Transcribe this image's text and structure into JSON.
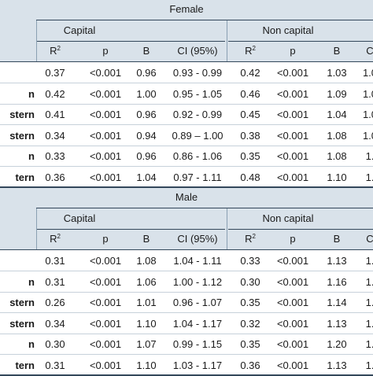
{
  "sections": [
    {
      "title": "Female",
      "group1": "Capital",
      "group2": "Non capital",
      "columns": [
        "R2",
        "p",
        "B",
        "CI (95%)",
        "R2",
        "p",
        "B",
        "C"
      ],
      "rows": [
        {
          "label": "",
          "cells": [
            "0.37",
            "<0.001",
            "0.96",
            "0.93 - 0.99",
            "0.42",
            "<0.001",
            "1.03",
            "1.0"
          ]
        },
        {
          "label": "n",
          "cells": [
            "0.42",
            "<0.001",
            "1.00",
            "0.95 - 1.05",
            "0.46",
            "<0.001",
            "1.09",
            "1.0"
          ]
        },
        {
          "label": "stern",
          "cells": [
            "0.41",
            "<0.001",
            "0.96",
            "0.92 - 0.99",
            "0.45",
            "<0.001",
            "1.04",
            "1.0"
          ]
        },
        {
          "label": "stern",
          "cells": [
            "0.34",
            "<0.001",
            "0.94",
            "0.89 – 1.00",
            "0.38",
            "<0.001",
            "1.08",
            "1.0"
          ]
        },
        {
          "label": "n",
          "cells": [
            "0.33",
            "<0.001",
            "0.96",
            "0.86 - 1.06",
            "0.35",
            "<0.001",
            "1.08",
            "1."
          ]
        },
        {
          "label": "tern",
          "cells": [
            "0.36",
            "<0.001",
            "1.04",
            "0.97 - 1.11",
            "0.48",
            "<0.001",
            "1.10",
            "1."
          ]
        }
      ]
    },
    {
      "title": "Male",
      "group1": "Capital",
      "group2": "Non capital",
      "columns": [
        "R2",
        "p",
        "B",
        "CI (95%)",
        "R2",
        "p",
        "B",
        "C"
      ],
      "rows": [
        {
          "label": "",
          "cells": [
            "0.31",
            "<0.001",
            "1.08",
            "1.04 - 1.11",
            "0.33",
            "<0.001",
            "1.13",
            "1."
          ]
        },
        {
          "label": "n",
          "cells": [
            "0.31",
            "<0.001",
            "1.06",
            "1.00 - 1.12",
            "0.30",
            "<0.001",
            "1.16",
            "1."
          ]
        },
        {
          "label": "stern",
          "cells": [
            "0.26",
            "<0.001",
            "1.01",
            "0.96 - 1.07",
            "0.35",
            "<0.001",
            "1.14",
            "1."
          ]
        },
        {
          "label": "stern",
          "cells": [
            "0.34",
            "<0.001",
            "1.10",
            "1.04 - 1.17",
            "0.32",
            "<0.001",
            "1.13",
            "1."
          ]
        },
        {
          "label": "n",
          "cells": [
            "0.30",
            "<0.001",
            "1.07",
            "0.99 - 1.15",
            "0.35",
            "<0.001",
            "1.20",
            "1."
          ]
        },
        {
          "label": "tern",
          "cells": [
            "0.31",
            "<0.001",
            "1.10",
            "1.03 - 1.17",
            "0.36",
            "<0.001",
            "1.13",
            "1."
          ]
        }
      ]
    }
  ]
}
